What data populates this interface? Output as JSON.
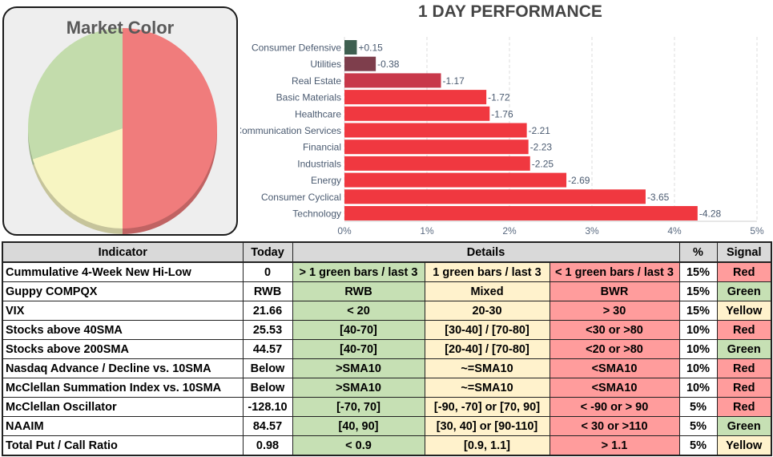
{
  "colors": {
    "green_cell": "#c6e0b4",
    "yellow_cell": "#fff2cc",
    "red_cell": "#ff9c9c",
    "pie_red": "#f07c7c",
    "pie_green": "#c3dcac",
    "pie_yellow": "#f7f5c2",
    "bar_red": "#f03840",
    "bar_dark_green": "#3e5f50",
    "bar_maroon": "#7e3e4c",
    "bar_darker_red": "#c8384a"
  },
  "market_color": {
    "title": "Market Color"
  },
  "chart_data": [
    {
      "type": "pie",
      "title": "Market Color",
      "slices": [
        {
          "label": "Red",
          "value": 50,
          "color": "#f07c7c"
        },
        {
          "label": "Yellow",
          "value": 20,
          "color": "#f7f5c2"
        },
        {
          "label": "Green",
          "value": 30,
          "color": "#c3dcac"
        }
      ]
    },
    {
      "type": "bar",
      "orientation": "horizontal",
      "title": "1 DAY PERFORMANCE",
      "categories": [
        "Consumer Defensive",
        "Utilities",
        "Real Estate",
        "Basic Materials",
        "Healthcare",
        "Communication Services",
        "Financial",
        "Industrials",
        "Energy",
        "Consumer Cyclical",
        "Technology"
      ],
      "values": [
        0.15,
        -0.38,
        -1.17,
        -1.72,
        -1.76,
        -2.21,
        -2.23,
        -2.25,
        -2.69,
        -3.65,
        -4.28
      ],
      "labels": [
        "+0.15",
        "-0.38",
        "-1.17",
        "-1.72",
        "-1.76",
        "-2.21",
        "-2.23",
        "-2.25",
        "-2.69",
        "-3.65",
        "-4.28"
      ],
      "colors": [
        "#3e5f50",
        "#7e3e4c",
        "#c8384a",
        "#f03840",
        "#f03840",
        "#f03840",
        "#f03840",
        "#f03840",
        "#f03840",
        "#f03840",
        "#f03840"
      ],
      "xlim": [
        0,
        5
      ],
      "xticks": [
        "0%",
        "1%",
        "2%",
        "3%",
        "4%",
        "5%"
      ],
      "grid": true
    }
  ],
  "table": {
    "headers": {
      "indicator": "Indicator",
      "today": "Today",
      "details": "Details",
      "pct": "%",
      "signal": "Signal"
    },
    "rows": [
      {
        "indicator": "Cummulative 4-Week New Hi-Low",
        "today": "0",
        "green": "> 1 green bars / last 3",
        "yellow": "1 green bars / last 3",
        "red": "< 1 green bars / last 3",
        "pct": "15%",
        "signal": "Red"
      },
      {
        "indicator": "Guppy COMPQX",
        "today": "RWB",
        "green": "RWB",
        "yellow": "Mixed",
        "red": "BWR",
        "pct": "15%",
        "signal": "Green"
      },
      {
        "indicator": "VIX",
        "today": "21.66",
        "green": "< 20",
        "yellow": "20-30",
        "red": "> 30",
        "pct": "15%",
        "signal": "Yellow"
      },
      {
        "indicator": "Stocks above 40SMA",
        "today": "25.53",
        "green": "[40-70]",
        "yellow": "[30-40] / [70-80]",
        "red": "<30 or >80",
        "pct": "10%",
        "signal": "Red"
      },
      {
        "indicator": "Stocks above 200SMA",
        "today": "44.57",
        "green": "[40-70]",
        "yellow": "[20-40] / [70-80]",
        "red": "<20 or >80",
        "pct": "10%",
        "signal": "Green"
      },
      {
        "indicator": "Nasdaq Advance / Decline vs. 10SMA",
        "today": "Below",
        "green": ">SMA10",
        "yellow": "~=SMA10",
        "red": "<SMA10",
        "pct": "10%",
        "signal": "Red"
      },
      {
        "indicator": "McClellan Summation Index vs. 10SMA",
        "today": "Below",
        "green": ">SMA10",
        "yellow": "~=SMA10",
        "red": "<SMA10",
        "pct": "10%",
        "signal": "Red"
      },
      {
        "indicator": "McClellan Oscillator",
        "today": "-128.10",
        "green": "[-70,  70]",
        "yellow": "[-90, -70] or [70, 90]",
        "red": "< -90 or > 90",
        "pct": "5%",
        "signal": "Red"
      },
      {
        "indicator": "NAAIM",
        "today": "84.57",
        "green": "[40, 90]",
        "yellow": "[30, 40] or [90-110]",
        "red": "< 30 or >110",
        "pct": "5%",
        "signal": "Green"
      },
      {
        "indicator": "Total Put / Call Ratio",
        "today": "0.98",
        "green": "< 0.9",
        "yellow": "[0.9, 1.1]",
        "red": "> 1.1",
        "pct": "5%",
        "signal": "Yellow"
      }
    ]
  }
}
